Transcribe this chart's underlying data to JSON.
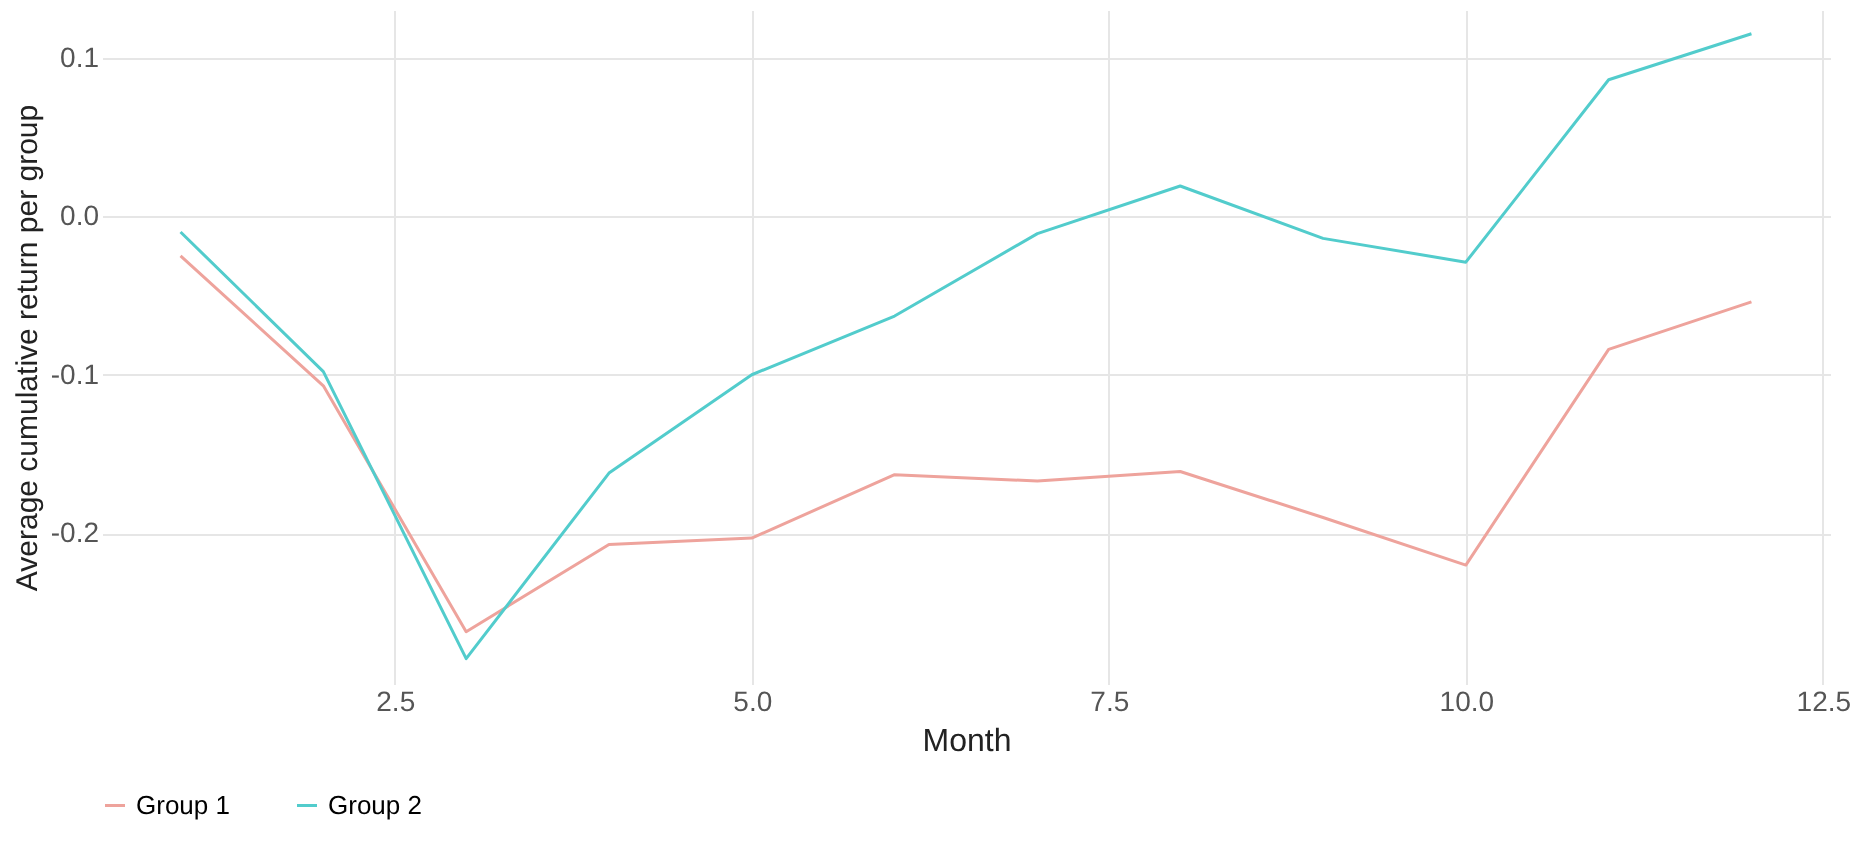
{
  "chart_data": {
    "type": "line",
    "xlabel": "Month",
    "ylabel": "Average cumulative return per group",
    "x": [
      1,
      2,
      3,
      4,
      5,
      6,
      7,
      8,
      9,
      10,
      11,
      12
    ],
    "series": [
      {
        "name": "Group 1",
        "color": "#eea39c",
        "values": [
          -0.025,
          -0.107,
          -0.262,
          -0.207,
          -0.203,
          -0.163,
          -0.167,
          -0.161,
          -0.19,
          -0.22,
          -0.084,
          -0.054
        ]
      },
      {
        "name": "Group 2",
        "color": "#52cccc",
        "values": [
          -0.01,
          -0.098,
          -0.279,
          -0.162,
          -0.1,
          -0.063,
          -0.011,
          0.019,
          -0.014,
          -0.029,
          0.086,
          0.115
        ]
      }
    ],
    "xlim": [
      0.45,
      12.55
    ],
    "ylim": [
      -0.295,
      0.13
    ],
    "xticks": [
      {
        "value": 2.5,
        "label": "2.5"
      },
      {
        "value": 5,
        "label": "5.0"
      },
      {
        "value": 7.5,
        "label": "7.5"
      },
      {
        "value": 10,
        "label": "10.0"
      },
      {
        "value": 12.5,
        "label": "12.5"
      }
    ],
    "yticks": [
      {
        "value": -0.2,
        "label": "-0.2"
      },
      {
        "value": -0.1,
        "label": "-0.1"
      },
      {
        "value": 0,
        "label": "0.0"
      },
      {
        "value": 0.1,
        "label": "0.1"
      }
    ],
    "grid": true,
    "legend": "bottom",
    "line_style": "solid"
  }
}
